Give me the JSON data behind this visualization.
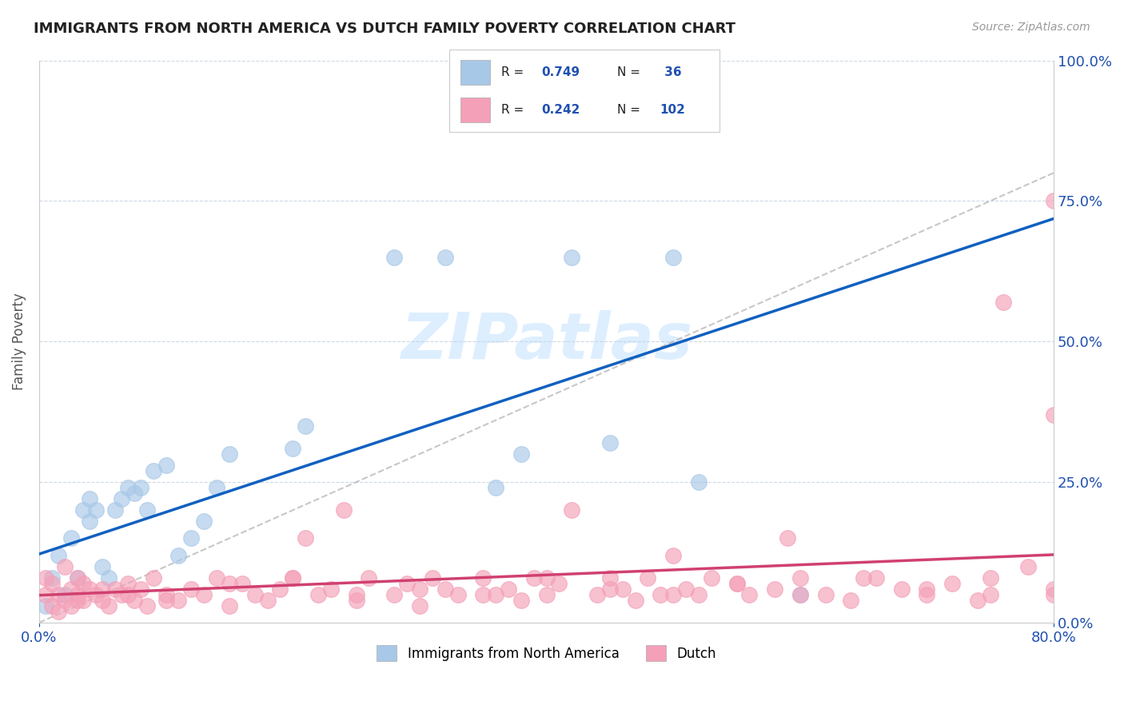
{
  "title": "IMMIGRANTS FROM NORTH AMERICA VS DUTCH FAMILY POVERTY CORRELATION CHART",
  "source": "Source: ZipAtlas.com",
  "ylabel": "Family Poverty",
  "ytick_labels": [
    "0.0%",
    "25.0%",
    "50.0%",
    "75.0%",
    "100.0%"
  ],
  "ytick_values": [
    0,
    25,
    50,
    75,
    100
  ],
  "xlim": [
    0,
    80
  ],
  "ylim": [
    0,
    100
  ],
  "legend_label1": "Immigrants from North America",
  "legend_label2": "Dutch",
  "r1": 0.749,
  "n1": 36,
  "r2": 0.242,
  "n2": 102,
  "color_blue": "#a8c8e8",
  "color_pink": "#f4a0b8",
  "color_blue_line": "#1060c0",
  "color_pink_line": "#d04070",
  "color_diag": "#b0b0b0",
  "color_text_blue": "#2050b0",
  "watermark_color": "#ddeeff",
  "background_color": "#ffffff",
  "blue_scatter_x": [
    0.5,
    1.0,
    1.5,
    2.0,
    2.5,
    3.0,
    3.5,
    4.0,
    4.5,
    5.0,
    5.5,
    6.0,
    6.5,
    7.0,
    7.5,
    8.0,
    8.5,
    9.0,
    10.0,
    11.0,
    12.0,
    13.0,
    14.0,
    15.0,
    20.0,
    21.0,
    28.0,
    32.0,
    36.0,
    38.0,
    42.0,
    45.0,
    50.0,
    52.0,
    60.0,
    4.0
  ],
  "blue_scatter_y": [
    3,
    8,
    12,
    5,
    15,
    8,
    20,
    18,
    20,
    10,
    8,
    20,
    22,
    24,
    23,
    24,
    20,
    27,
    28,
    12,
    15,
    18,
    24,
    30,
    31,
    35,
    65,
    65,
    24,
    30,
    65,
    32,
    65,
    25,
    5,
    22
  ],
  "pink_scatter_x": [
    0.5,
    0.5,
    1.0,
    1.0,
    1.5,
    1.5,
    2.0,
    2.0,
    2.5,
    2.5,
    3.0,
    3.0,
    3.5,
    3.5,
    4.0,
    4.5,
    5.0,
    5.5,
    6.0,
    6.5,
    7.0,
    7.5,
    8.0,
    8.5,
    9.0,
    10.0,
    11.0,
    12.0,
    13.0,
    14.0,
    15.0,
    16.0,
    17.0,
    18.0,
    19.0,
    20.0,
    21.0,
    22.0,
    23.0,
    24.0,
    25.0,
    26.0,
    28.0,
    29.0,
    30.0,
    31.0,
    32.0,
    33.0,
    35.0,
    36.0,
    37.0,
    38.0,
    39.0,
    40.0,
    41.0,
    42.0,
    44.0,
    45.0,
    46.0,
    47.0,
    48.0,
    49.0,
    50.0,
    51.0,
    52.0,
    53.0,
    55.0,
    56.0,
    58.0,
    59.0,
    60.0,
    62.0,
    64.0,
    66.0,
    68.0,
    70.0,
    72.0,
    74.0,
    75.0,
    76.0,
    78.0,
    80.0,
    80.0,
    80.0,
    80.0,
    3.0,
    5.0,
    7.0,
    10.0,
    15.0,
    20.0,
    25.0,
    30.0,
    35.0,
    40.0,
    45.0,
    50.0,
    55.0,
    60.0,
    65.0,
    70.0,
    75.0
  ],
  "pink_scatter_y": [
    5,
    8,
    3,
    7,
    2,
    5,
    4,
    10,
    6,
    3,
    5,
    8,
    4,
    7,
    6,
    5,
    4,
    3,
    6,
    5,
    7,
    4,
    6,
    3,
    8,
    5,
    4,
    6,
    5,
    8,
    3,
    7,
    5,
    4,
    6,
    8,
    15,
    5,
    6,
    20,
    4,
    8,
    5,
    7,
    3,
    8,
    6,
    5,
    8,
    5,
    6,
    4,
    8,
    5,
    7,
    20,
    5,
    8,
    6,
    4,
    8,
    5,
    12,
    6,
    5,
    8,
    7,
    5,
    6,
    15,
    8,
    5,
    4,
    8,
    6,
    5,
    7,
    4,
    8,
    57,
    10,
    75,
    37,
    5,
    6,
    4,
    6,
    5,
    4,
    7,
    8,
    5,
    6,
    5,
    8,
    6,
    5,
    7,
    5,
    8,
    6,
    5
  ]
}
